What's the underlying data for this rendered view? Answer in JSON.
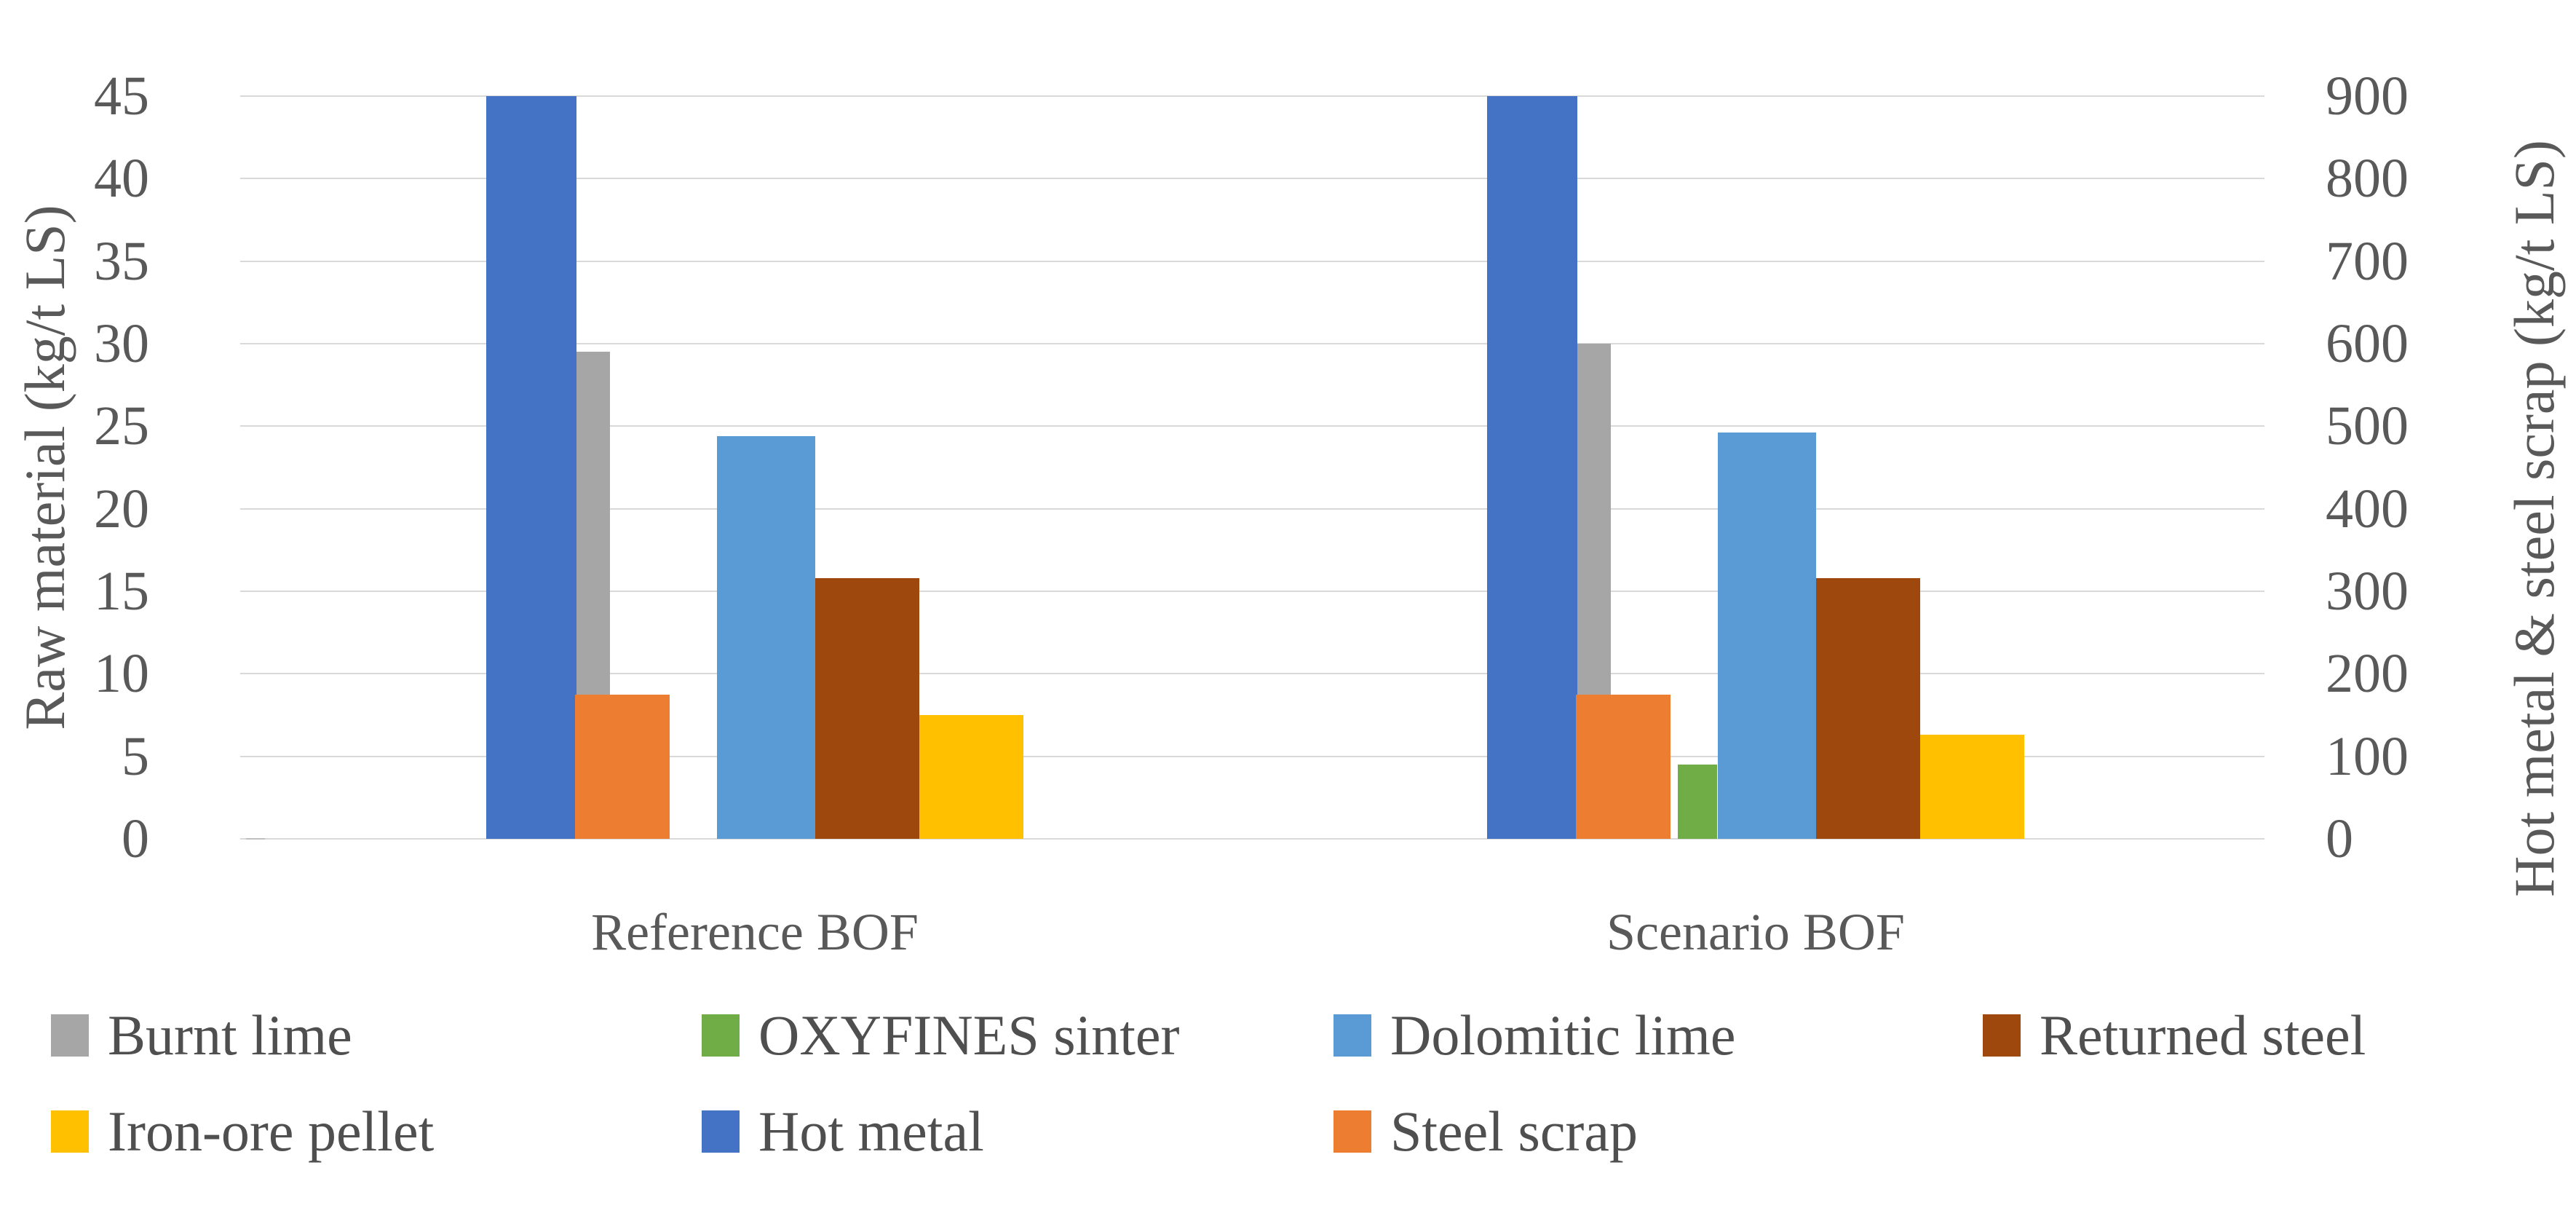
{
  "chart_data": {
    "type": "bar",
    "title": "",
    "categories": [
      "Reference BOF",
      "Scenario BOF"
    ],
    "series": [
      {
        "name": "Burnt lime",
        "color": "#A6A6A6",
        "axis": "left",
        "values": [
          29.5,
          30
        ]
      },
      {
        "name": "OXYFINES sinter",
        "color": "#70AD47",
        "axis": "left",
        "values": [
          0,
          4.5
        ]
      },
      {
        "name": "Dolomitic lime",
        "color": "#5B9BD5",
        "axis": "left",
        "values": [
          24.4,
          24.6
        ]
      },
      {
        "name": "Returned steel",
        "color": "#9E480E",
        "axis": "left",
        "values": [
          15.8,
          15.8
        ]
      },
      {
        "name": "Iron-ore pellet",
        "color": "#FFC000",
        "axis": "left",
        "values": [
          7.5,
          6.3
        ]
      },
      {
        "name": "Hot metal",
        "color": "#4472C4",
        "axis": "right",
        "values": [
          900,
          900
        ]
      },
      {
        "name": "Steel scrap",
        "color": "#ED7D31",
        "axis": "right",
        "values": [
          175,
          175
        ]
      }
    ],
    "left_axis": {
      "label": "Raw material (kg/t LS)",
      "min": 0,
      "max": 45,
      "step": 5,
      "ticks": [
        "0",
        "5",
        "10",
        "15",
        "20",
        "25",
        "30",
        "35",
        "40",
        "45"
      ]
    },
    "right_axis": {
      "label": "Hot metal & steel scrap (kg/t LS)",
      "min": 0,
      "max": 900,
      "step": 100,
      "ticks": [
        "0",
        "100",
        "200",
        "300",
        "400",
        "500",
        "600",
        "700",
        "800",
        "900"
      ]
    },
    "legend_rows": [
      [
        "Burnt lime",
        "OXYFINES sinter",
        "Dolomitic lime",
        "Returned steel"
      ],
      [
        "Iron-ore pellet",
        "Hot metal",
        "Steel scrap"
      ]
    ],
    "grid": "horizontal",
    "legend_position": "bottom"
  }
}
